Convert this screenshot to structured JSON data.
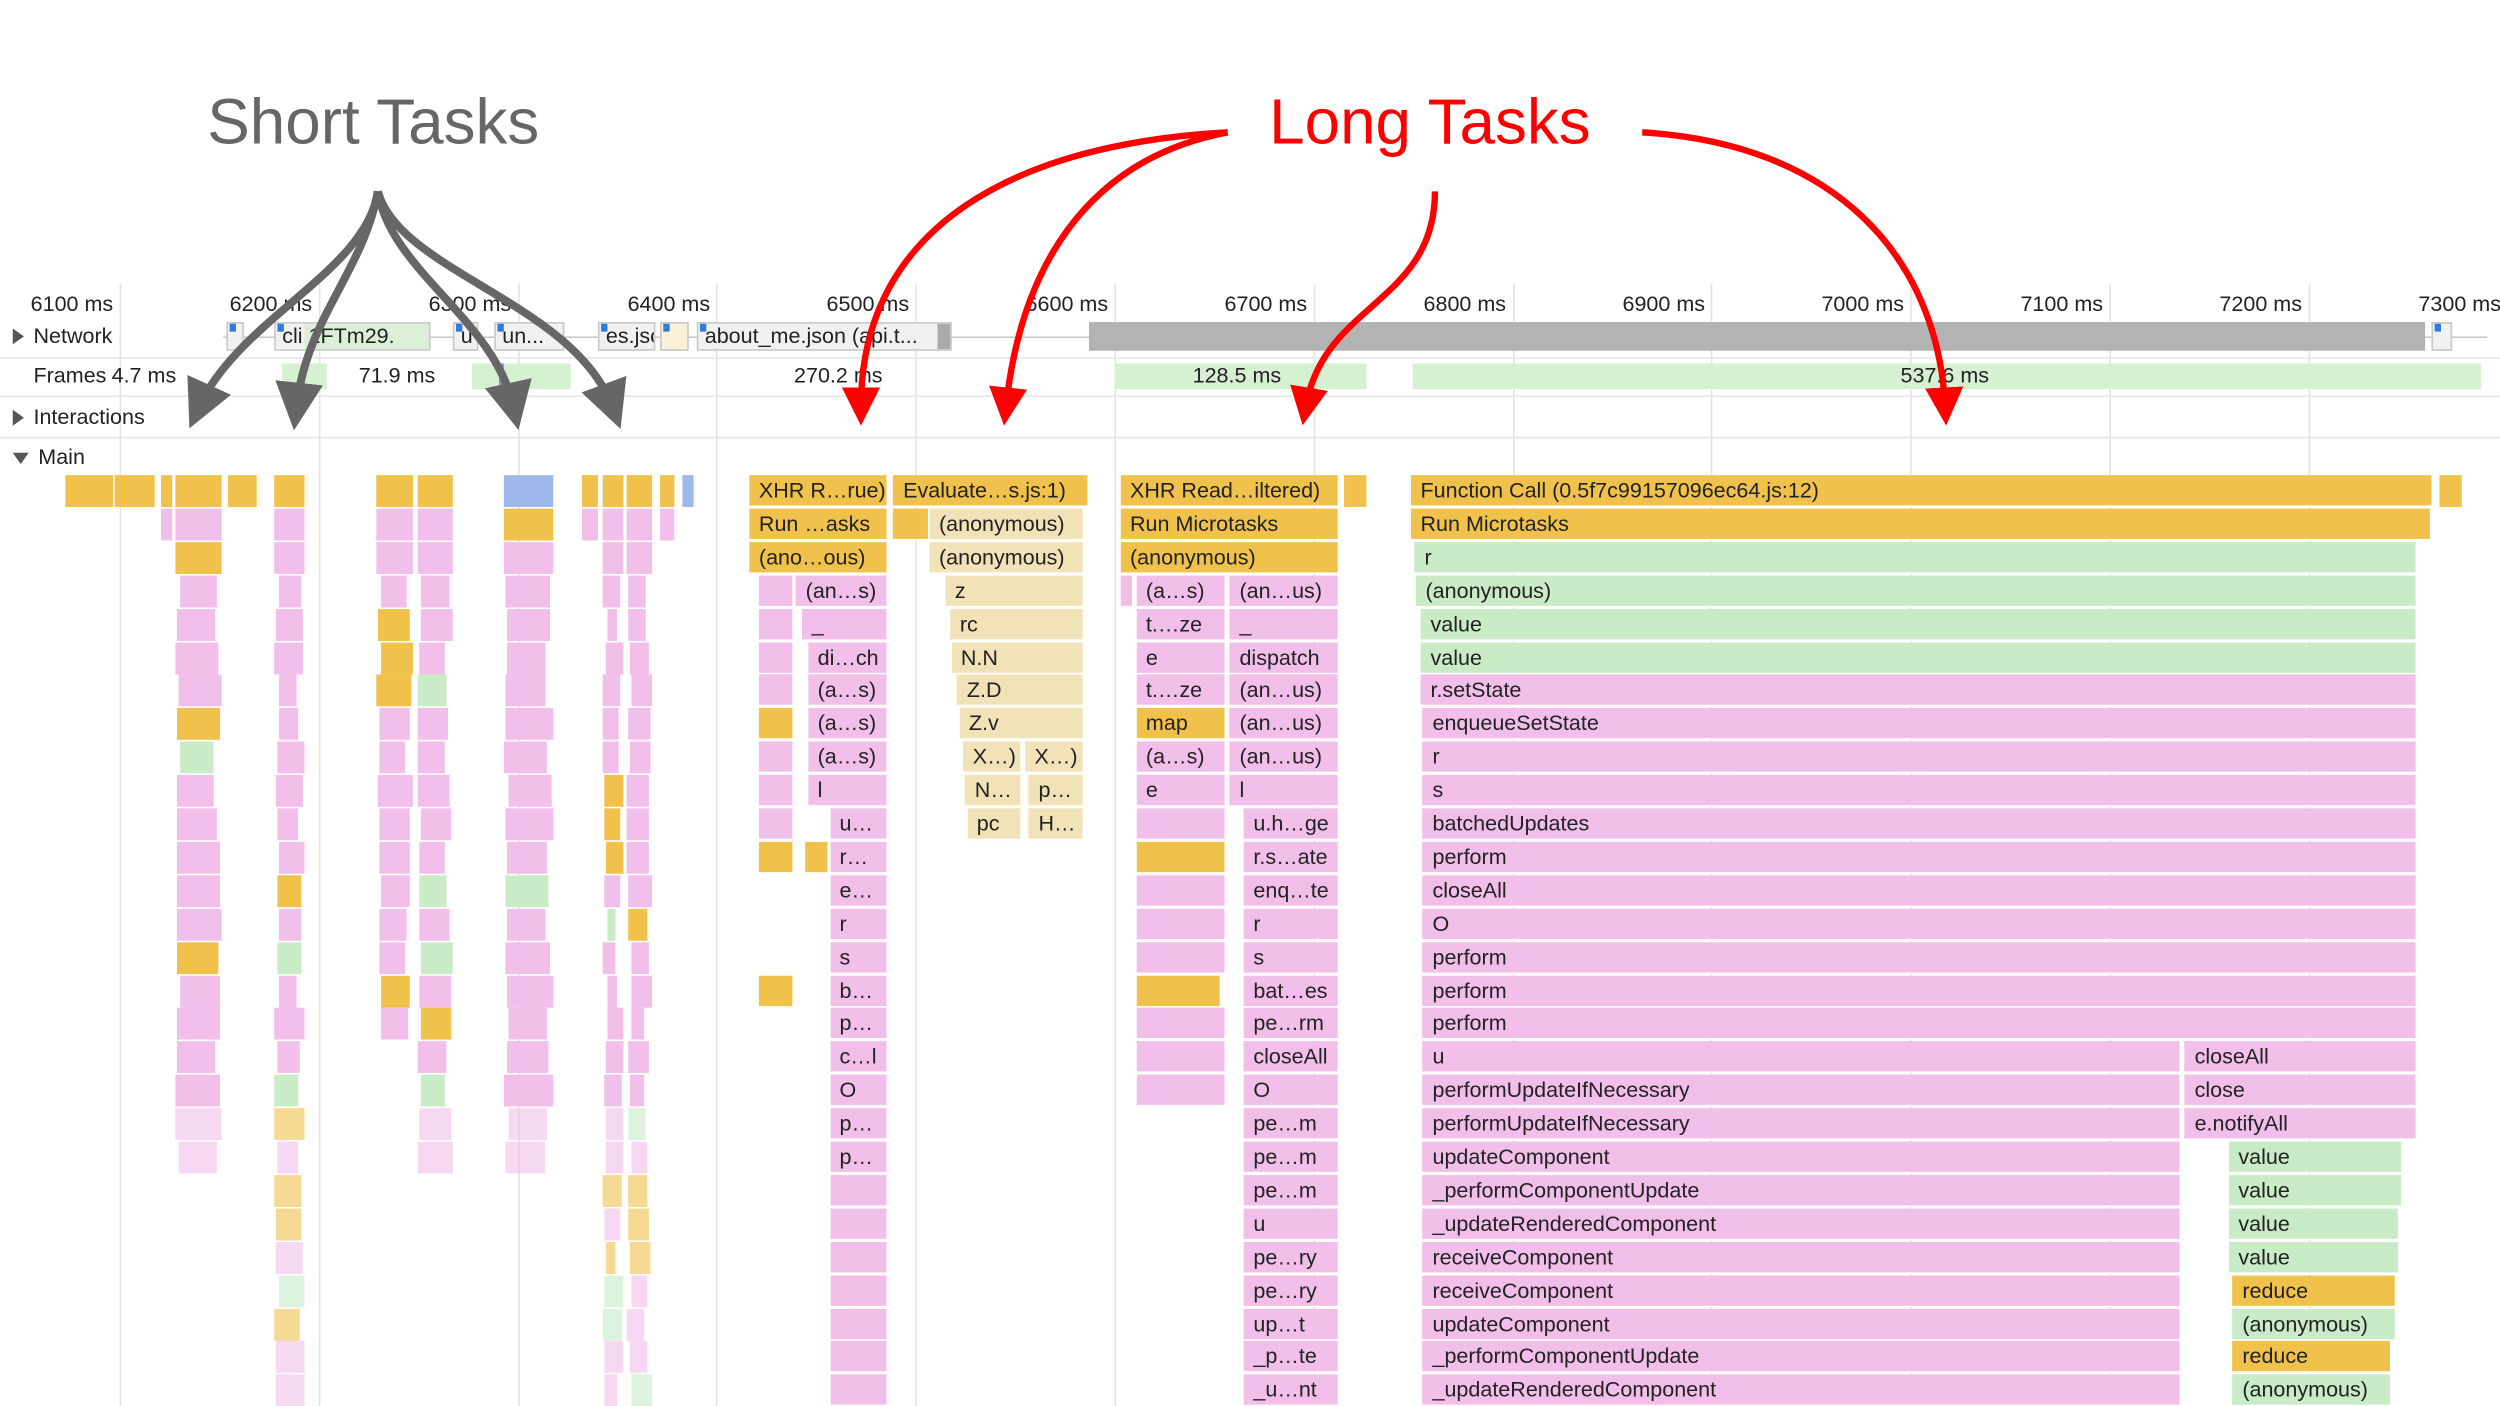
{
  "annotations": {
    "short_tasks": "Short Tasks",
    "long_tasks": "Long Tasks",
    "short_color": "#666666",
    "long_color": "#ff0000"
  },
  "timeline": {
    "ticks": [
      "6100 ms",
      "6200 ms",
      "6300 ms",
      "6400 ms",
      "6500 ms",
      "6600 ms",
      "6700 ms",
      "6800 ms",
      "6900 ms",
      "7000 ms",
      "7100 ms",
      "7200 ms",
      "7300 ms"
    ]
  },
  "tracks": {
    "network": "Network",
    "frames": "Frames",
    "interactions": "Interactions",
    "main": "Main"
  },
  "network": {
    "requests": [
      "cli 1FTm29.",
      "u",
      "un...",
      "es.jsc",
      "about_me.json (api.t..."
    ]
  },
  "frames": [
    "4.7 ms",
    "71.9 ms",
    "270.2 ms",
    "128.5 ms",
    "537.6 ms"
  ],
  "colors": {
    "y": "#f0c24b",
    "p": "#f2bfea",
    "g": "#c9ebc6",
    "b": "#f2e2b8"
  },
  "main": {
    "blocks": [
      {
        "d": 0,
        "s": 6416.5,
        "e": 6486,
        "c": "y",
        "t": "XHR R…rue)"
      },
      {
        "d": 1,
        "s": 6416.5,
        "e": 6486,
        "c": "y",
        "t": "Run …asks"
      },
      {
        "d": 2,
        "s": 6416.5,
        "e": 6486,
        "c": "y",
        "t": "(ano…ous)"
      },
      {
        "d": 3,
        "s": 6421,
        "e": 6439,
        "c": "p",
        "t": ""
      },
      {
        "d": 3,
        "s": 6440,
        "e": 6486,
        "c": "p",
        "t": "(an…s)"
      },
      {
        "d": 4,
        "s": 6421,
        "e": 6439,
        "c": "p",
        "t": ""
      },
      {
        "d": 4,
        "s": 6443,
        "e": 6486,
        "c": "p",
        "t": "_"
      },
      {
        "d": 5,
        "s": 6421,
        "e": 6439,
        "c": "p",
        "t": ""
      },
      {
        "d": 5,
        "s": 6446,
        "e": 6486,
        "c": "p",
        "t": "di…ch"
      },
      {
        "d": 6,
        "s": 6421,
        "e": 6439,
        "c": "p",
        "t": ""
      },
      {
        "d": 6,
        "s": 6446,
        "e": 6486,
        "c": "p",
        "t": "(a…s)"
      },
      {
        "d": 7,
        "s": 6421,
        "e": 6439,
        "c": "y",
        "t": ""
      },
      {
        "d": 7,
        "s": 6446,
        "e": 6486,
        "c": "p",
        "t": "(a…s)"
      },
      {
        "d": 8,
        "s": 6421,
        "e": 6439,
        "c": "p",
        "t": ""
      },
      {
        "d": 8,
        "s": 6446,
        "e": 6486,
        "c": "p",
        "t": "(a…s)"
      },
      {
        "d": 9,
        "s": 6421,
        "e": 6439,
        "c": "p",
        "t": ""
      },
      {
        "d": 9,
        "s": 6446,
        "e": 6486,
        "c": "p",
        "t": "l"
      },
      {
        "d": 10,
        "s": 6421,
        "e": 6439,
        "c": "p",
        "t": ""
      },
      {
        "d": 10,
        "s": 6457,
        "e": 6486,
        "c": "p",
        "t": "u…"
      },
      {
        "d": 11,
        "s": 6421,
        "e": 6439,
        "c": "y",
        "t": ""
      },
      {
        "d": 11,
        "s": 6444.5,
        "e": 6456.5,
        "c": "y",
        "t": ""
      },
      {
        "d": 11,
        "s": 6457,
        "e": 6486,
        "c": "p",
        "t": "r…"
      },
      {
        "d": 12,
        "s": 6457,
        "e": 6486,
        "c": "p",
        "t": "e…"
      },
      {
        "d": 13,
        "s": 6457,
        "e": 6486,
        "c": "p",
        "t": "r"
      },
      {
        "d": 14,
        "s": 6457,
        "e": 6486,
        "c": "p",
        "t": "s"
      },
      {
        "d": 15,
        "s": 6421,
        "e": 6439,
        "c": "y",
        "t": ""
      },
      {
        "d": 15,
        "s": 6457,
        "e": 6486,
        "c": "p",
        "t": "b…"
      },
      {
        "d": 16,
        "s": 6457,
        "e": 6486,
        "c": "p",
        "t": "p…"
      },
      {
        "d": 17,
        "s": 6457,
        "e": 6486,
        "c": "p",
        "t": "c…l"
      },
      {
        "d": 18,
        "s": 6457,
        "e": 6486,
        "c": "p",
        "t": "O"
      },
      {
        "d": 19,
        "s": 6457,
        "e": 6486,
        "c": "p",
        "t": "p…"
      },
      {
        "d": 20,
        "s": 6457,
        "e": 6486,
        "c": "p",
        "t": "p…"
      },
      {
        "d": 21,
        "s": 6457,
        "e": 6486,
        "c": "p",
        "t": ""
      },
      {
        "d": 22,
        "s": 6457,
        "e": 6486,
        "c": "p",
        "t": ""
      },
      {
        "d": 23,
        "s": 6457,
        "e": 6486,
        "c": "p",
        "t": ""
      },
      {
        "d": 24,
        "s": 6457,
        "e": 6486,
        "c": "p",
        "t": ""
      },
      {
        "d": 25,
        "s": 6457,
        "e": 6486,
        "c": "p",
        "t": ""
      },
      {
        "d": 26,
        "s": 6457,
        "e": 6486,
        "c": "p",
        "t": ""
      },
      {
        "d": 27,
        "s": 6457,
        "e": 6486,
        "c": "p",
        "t": ""
      },
      {
        "d": 0,
        "s": 6489,
        "e": 6587,
        "c": "y",
        "t": "Evaluate…s.js:1)"
      },
      {
        "d": 1,
        "s": 6489,
        "e": 6507,
        "c": "y",
        "t": ""
      },
      {
        "d": 1,
        "s": 6507,
        "e": 6585,
        "c": "b",
        "t": "(anonymous)"
      },
      {
        "d": 2,
        "s": 6507,
        "e": 6585,
        "c": "b",
        "t": "(anonymous)"
      },
      {
        "d": 3,
        "s": 6515,
        "e": 6585,
        "c": "b",
        "t": "z"
      },
      {
        "d": 4,
        "s": 6517.5,
        "e": 6585,
        "c": "b",
        "t": "rc"
      },
      {
        "d": 5,
        "s": 6518,
        "e": 6585,
        "c": "b",
        "t": "N.N"
      },
      {
        "d": 6,
        "s": 6521,
        "e": 6585,
        "c": "b",
        "t": "Z.D"
      },
      {
        "d": 7,
        "s": 6522,
        "e": 6585,
        "c": "b",
        "t": "Z.v"
      },
      {
        "d": 8,
        "s": 6524,
        "e": 6553.5,
        "c": "b",
        "t": "X…)"
      },
      {
        "d": 8,
        "s": 6555,
        "e": 6585,
        "c": "b",
        "t": "X…)"
      },
      {
        "d": 9,
        "s": 6525,
        "e": 6553.5,
        "c": "b",
        "t": "N…"
      },
      {
        "d": 9,
        "s": 6557,
        "e": 6585,
        "c": "b",
        "t": "p…"
      },
      {
        "d": 10,
        "s": 6526,
        "e": 6553.5,
        "c": "b",
        "t": "pc"
      },
      {
        "d": 10,
        "s": 6557,
        "e": 6585,
        "c": "b",
        "t": "H…"
      },
      {
        "d": 0,
        "s": 6603,
        "e": 6713,
        "c": "y",
        "t": "XHR Read…iltered)"
      },
      {
        "d": 1,
        "s": 6603,
        "e": 6713,
        "c": "y",
        "t": "Run Microtasks"
      },
      {
        "d": 2,
        "s": 6603,
        "e": 6713,
        "c": "y",
        "t": "(anonymous)"
      },
      {
        "d": 3,
        "s": 6603,
        "e": 6610,
        "c": "p",
        "t": ""
      },
      {
        "d": 3,
        "s": 6611,
        "e": 6656,
        "c": "p",
        "t": "(a…s)"
      },
      {
        "d": 3,
        "s": 6658,
        "e": 6713,
        "c": "p",
        "t": "(an…us)"
      },
      {
        "d": 4,
        "s": 6611,
        "e": 6656,
        "c": "p",
        "t": "t.…ze"
      },
      {
        "d": 4,
        "s": 6658,
        "e": 6713,
        "c": "p",
        "t": "_"
      },
      {
        "d": 5,
        "s": 6611,
        "e": 6656,
        "c": "p",
        "t": "e"
      },
      {
        "d": 5,
        "s": 6658,
        "e": 6713,
        "c": "p",
        "t": "dispatch"
      },
      {
        "d": 6,
        "s": 6611,
        "e": 6656,
        "c": "p",
        "t": "t.…ze"
      },
      {
        "d": 6,
        "s": 6658,
        "e": 6713,
        "c": "p",
        "t": "(an…us)"
      },
      {
        "d": 7,
        "s": 6611,
        "e": 6656,
        "c": "y",
        "t": "map"
      },
      {
        "d": 7,
        "s": 6658,
        "e": 6713,
        "c": "p",
        "t": "(an…us)"
      },
      {
        "d": 8,
        "s": 6611,
        "e": 6656,
        "c": "p",
        "t": "(a…s)"
      },
      {
        "d": 8,
        "s": 6658,
        "e": 6713,
        "c": "p",
        "t": "(an…us)"
      },
      {
        "d": 9,
        "s": 6611,
        "e": 6656,
        "c": "p",
        "t": "e"
      },
      {
        "d": 9,
        "s": 6658,
        "e": 6713,
        "c": "p",
        "t": "l"
      },
      {
        "d": 10,
        "s": 6611,
        "e": 6656,
        "c": "p",
        "t": ""
      },
      {
        "d": 10,
        "s": 6665,
        "e": 6713,
        "c": "p",
        "t": "u.h…ge"
      },
      {
        "d": 11,
        "s": 6611,
        "e": 6656,
        "c": "y",
        "t": ""
      },
      {
        "d": 11,
        "s": 6665,
        "e": 6713,
        "c": "p",
        "t": "r.s…ate"
      },
      {
        "d": 12,
        "s": 6611,
        "e": 6656,
        "c": "p",
        "t": ""
      },
      {
        "d": 12,
        "s": 6665,
        "e": 6713,
        "c": "p",
        "t": "enq…te"
      },
      {
        "d": 13,
        "s": 6611,
        "e": 6656,
        "c": "p",
        "t": ""
      },
      {
        "d": 13,
        "s": 6665,
        "e": 6713,
        "c": "p",
        "t": "r"
      },
      {
        "d": 14,
        "s": 6611,
        "e": 6656,
        "c": "p",
        "t": ""
      },
      {
        "d": 14,
        "s": 6665,
        "e": 6713,
        "c": "p",
        "t": "s"
      },
      {
        "d": 15,
        "s": 6611,
        "e": 6654,
        "c": "y",
        "t": ""
      },
      {
        "d": 15,
        "s": 6665,
        "e": 6713,
        "c": "p",
        "t": "bat…es"
      },
      {
        "d": 16,
        "s": 6611,
        "e": 6656,
        "c": "p",
        "t": ""
      },
      {
        "d": 16,
        "s": 6665,
        "e": 6713,
        "c": "p",
        "t": "pe…rm"
      },
      {
        "d": 17,
        "s": 6611,
        "e": 6656,
        "c": "p",
        "t": ""
      },
      {
        "d": 17,
        "s": 6665,
        "e": 6713,
        "c": "p",
        "t": "closeAll"
      },
      {
        "d": 18,
        "s": 6611,
        "e": 6656,
        "c": "p",
        "t": ""
      },
      {
        "d": 18,
        "s": 6665,
        "e": 6713,
        "c": "p",
        "t": "O"
      },
      {
        "d": 19,
        "s": 6665,
        "e": 6713,
        "c": "p",
        "t": "pe…m"
      },
      {
        "d": 20,
        "s": 6665,
        "e": 6713,
        "c": "p",
        "t": "pe…m"
      },
      {
        "d": 21,
        "s": 6665,
        "e": 6713,
        "c": "p",
        "t": "pe…m"
      },
      {
        "d": 22,
        "s": 6665,
        "e": 6713,
        "c": "p",
        "t": "u"
      },
      {
        "d": 23,
        "s": 6665,
        "e": 6713,
        "c": "p",
        "t": "pe…ry"
      },
      {
        "d": 24,
        "s": 6665,
        "e": 6713,
        "c": "p",
        "t": "pe…ry"
      },
      {
        "d": 25,
        "s": 6665,
        "e": 6713,
        "c": "p",
        "t": "up…t"
      },
      {
        "d": 26,
        "s": 6665,
        "e": 6713,
        "c": "p",
        "t": "_p…te"
      },
      {
        "d": 27,
        "s": 6665,
        "e": 6713,
        "c": "p",
        "t": "_u…nt"
      },
      {
        "d": 0,
        "s": 6749,
        "e": 7263,
        "c": "y",
        "t": "Function Call (0.5f7c99157096ec64.js:12)"
      },
      {
        "d": 1,
        "s": 6749,
        "e": 7262,
        "c": "y",
        "t": "Run Microtasks"
      },
      {
        "d": 2,
        "s": 6751,
        "e": 7255,
        "c": "g",
        "t": "r"
      },
      {
        "d": 3,
        "s": 6751.5,
        "e": 7255,
        "c": "g",
        "t": "(anonymous)"
      },
      {
        "d": 4,
        "s": 6754,
        "e": 7255,
        "c": "g",
        "t": "value"
      },
      {
        "d": 5,
        "s": 6754,
        "e": 7255,
        "c": "g",
        "t": "value"
      },
      {
        "d": 6,
        "s": 6754,
        "e": 7255,
        "c": "p",
        "t": "r.setState"
      },
      {
        "d": 7,
        "s": 6755,
        "e": 7255,
        "c": "p",
        "t": "enqueueSetState"
      },
      {
        "d": 8,
        "s": 6755,
        "e": 7255,
        "c": "p",
        "t": "r"
      },
      {
        "d": 9,
        "s": 6755,
        "e": 7255,
        "c": "p",
        "t": "s"
      },
      {
        "d": 10,
        "s": 6755,
        "e": 7255,
        "c": "p",
        "t": "batchedUpdates"
      },
      {
        "d": 11,
        "s": 6755,
        "e": 7255,
        "c": "p",
        "t": "perform"
      },
      {
        "d": 12,
        "s": 6755,
        "e": 7255,
        "c": "p",
        "t": "closeAll"
      },
      {
        "d": 13,
        "s": 6755,
        "e": 7255,
        "c": "p",
        "t": "O"
      },
      {
        "d": 14,
        "s": 6755,
        "e": 7255,
        "c": "p",
        "t": "perform"
      },
      {
        "d": 15,
        "s": 6755,
        "e": 7255,
        "c": "p",
        "t": "perform"
      },
      {
        "d": 16,
        "s": 6755,
        "e": 7255,
        "c": "p",
        "t": "perform"
      },
      {
        "d": 17,
        "s": 6755,
        "e": 7136,
        "c": "p",
        "t": "u"
      },
      {
        "d": 17,
        "s": 7138,
        "e": 7255,
        "c": "p",
        "t": "closeAll"
      },
      {
        "d": 18,
        "s": 6755,
        "e": 7136,
        "c": "p",
        "t": "performUpdateIfNecessary"
      },
      {
        "d": 18,
        "s": 7138,
        "e": 7255,
        "c": "p",
        "t": "close"
      },
      {
        "d": 19,
        "s": 6755,
        "e": 7136,
        "c": "p",
        "t": "performUpdateIfNecessary"
      },
      {
        "d": 19,
        "s": 7138,
        "e": 7255,
        "c": "p",
        "t": "e.notifyAll"
      },
      {
        "d": 20,
        "s": 6755,
        "e": 7136,
        "c": "p",
        "t": "updateComponent"
      },
      {
        "d": 20,
        "s": 7160,
        "e": 7247.5,
        "c": "g",
        "t": "value"
      },
      {
        "d": 21,
        "s": 6755,
        "e": 7136,
        "c": "p",
        "t": "_performComponentUpdate"
      },
      {
        "d": 21,
        "s": 7160,
        "e": 7247.5,
        "c": "g",
        "t": "value"
      },
      {
        "d": 22,
        "s": 6755,
        "e": 7136,
        "c": "p",
        "t": "_updateRenderedComponent"
      },
      {
        "d": 22,
        "s": 7160,
        "e": 7246,
        "c": "g",
        "t": "value"
      },
      {
        "d": 23,
        "s": 6755,
        "e": 7136,
        "c": "p",
        "t": "receiveComponent"
      },
      {
        "d": 23,
        "s": 7160,
        "e": 7246,
        "c": "g",
        "t": "value"
      },
      {
        "d": 24,
        "s": 6755,
        "e": 7136,
        "c": "p",
        "t": "receiveComponent"
      },
      {
        "d": 24,
        "s": 7162,
        "e": 7244,
        "c": "y",
        "t": "reduce"
      },
      {
        "d": 25,
        "s": 6755,
        "e": 7136,
        "c": "p",
        "t": "updateComponent"
      },
      {
        "d": 25,
        "s": 7162,
        "e": 7244,
        "c": "g",
        "t": "(anonymous)"
      },
      {
        "d": 26,
        "s": 6755,
        "e": 7136,
        "c": "p",
        "t": "_performComponentUpdate"
      },
      {
        "d": 26,
        "s": 7162,
        "e": 7242,
        "c": "y",
        "t": "reduce"
      },
      {
        "d": 27,
        "s": 6755,
        "e": 7136,
        "c": "p",
        "t": "_updateRenderedComponent"
      },
      {
        "d": 27,
        "s": 7162,
        "e": 7242,
        "c": "g",
        "t": "(anonymous)"
      }
    ]
  }
}
